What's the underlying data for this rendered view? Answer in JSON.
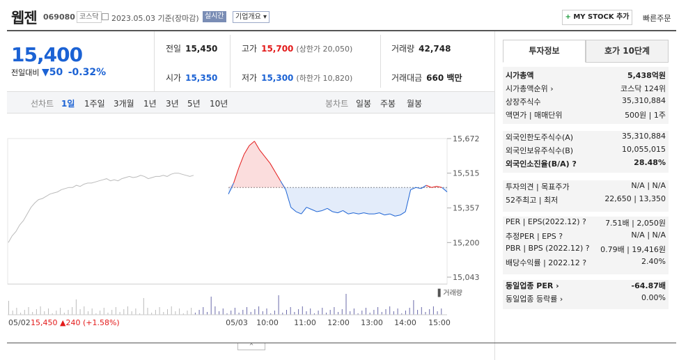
{
  "header": {
    "name": "웹젠",
    "code": "069080",
    "market": "코스닥",
    "date": "2023.05.03 기준(장마감)",
    "realtime": "실시간",
    "corp_info": "기업개요 ▾",
    "mystock_plus": "+",
    "mystock": "MY STOCK 추가",
    "quick_order": "빠른주문"
  },
  "summary": {
    "price": "15,400",
    "change_label": "전일대비",
    "change_arrow": "▼",
    "change_amount": "50",
    "change_pct": "-0.32%"
  },
  "stats": {
    "prev_k": "전일",
    "prev_v": "15,450",
    "high_k": "고가",
    "high_v": "15,700",
    "high_limit": "(상한가 20,050)",
    "vol_k": "거래량",
    "vol_v": "42,748",
    "open_k": "시가",
    "open_v": "15,350",
    "low_k": "저가",
    "low_v": "15,300",
    "low_limit": "(하한가 10,820)",
    "amt_k": "거래대금",
    "amt_v": "660 백만"
  },
  "tabs": {
    "line_label": "선차트",
    "line": [
      "1일",
      "1주일",
      "3개월",
      "1년",
      "3년",
      "5년",
      "10년"
    ],
    "candle_label": "봉차트",
    "candle": [
      "일봉",
      "주봉",
      "월봉"
    ]
  },
  "right_tabs": [
    "투자정보",
    "호가 10단계"
  ],
  "invest": [
    {
      "l": "시가총액",
      "r": "5,438억원",
      "bold": true
    },
    {
      "l": "시가총액순위 ›",
      "r": "코스닥 124위"
    },
    {
      "l": "상장주식수",
      "r": "35,310,884"
    },
    {
      "l": "액면가 | 매매단위",
      "r": "500원 | 1주"
    },
    {
      "l": "외국인한도주식수(A)",
      "r": "35,310,884"
    },
    {
      "l": "외국인보유주식수(B)",
      "r": "10,055,015"
    },
    {
      "l": "외국인소진율(B/A) ?",
      "r": "28.48%",
      "bold": true
    },
    {
      "l": "투자의견 | 목표주가",
      "r": "N/A | N/A"
    },
    {
      "l": "52주최고 | 최저",
      "r": "22,650 | 13,350"
    },
    {
      "l": "PER | EPS(2022.12) ?",
      "r": "7.51배 | 2,050원"
    },
    {
      "l": "추정PER | EPS ?",
      "r": "N/A | N/A"
    },
    {
      "l": "PBR | BPS (2022.12) ?",
      "r": "0.79배 | 19,416원"
    },
    {
      "l": "배당수익률 | 2022.12 ?",
      "r": "2.40%"
    },
    {
      "l": "동일업종 PER ›",
      "r": "-64.87배",
      "bold": true
    },
    {
      "l": "동일업종 등락률 ›",
      "r": "0.00%"
    }
  ],
  "chart_data": {
    "type": "line",
    "y_ticks": [
      "15,672",
      "15,515",
      "15,357",
      "15,200",
      "15,043"
    ],
    "x_ticks": [
      "05/03",
      "10:00",
      "11:00",
      "12:00",
      "13:00",
      "14:00",
      "15:00"
    ],
    "prev_day_label": "05/02",
    "prev_close": "15,450",
    "prev_change": "▲240",
    "prev_change_pct": "(+1.58%)",
    "volume_label": "거래량",
    "baseline": 15450,
    "colors": {
      "up": "#e31a1a",
      "down": "#1b62d4",
      "prev": "#bbbbbb"
    },
    "series": [
      {
        "values": [
          15200,
          15230,
          15250,
          15280,
          15300,
          15330,
          15360,
          15380,
          15395,
          15400,
          15410,
          15420,
          15425,
          15430,
          15440,
          15445,
          15450,
          15450,
          15460,
          15455,
          15465,
          15470,
          15470,
          15475,
          15480,
          15485,
          15490,
          15480,
          15485,
          15480,
          15490,
          15495,
          15500,
          15495,
          15498,
          15505,
          15500,
          15490,
          15495,
          15500,
          15500,
          15505,
          15500,
          15510,
          15515,
          15515,
          15510,
          15505,
          15500,
          15505
        ]
      },
      {
        "values": [
          15420,
          15470,
          15540,
          15600,
          15640,
          15660,
          15620,
          15590,
          15560,
          15520,
          15480,
          15440,
          15360,
          15340,
          15330,
          15360,
          15350,
          15340,
          15345,
          15355,
          15340,
          15335,
          15345,
          15330,
          15335,
          15330,
          15335,
          15330,
          15330,
          15335,
          15325,
          15330,
          15320,
          15325,
          15340,
          15440,
          15450,
          15445,
          15460,
          15450,
          15455,
          15450,
          15430
        ]
      }
    ]
  }
}
